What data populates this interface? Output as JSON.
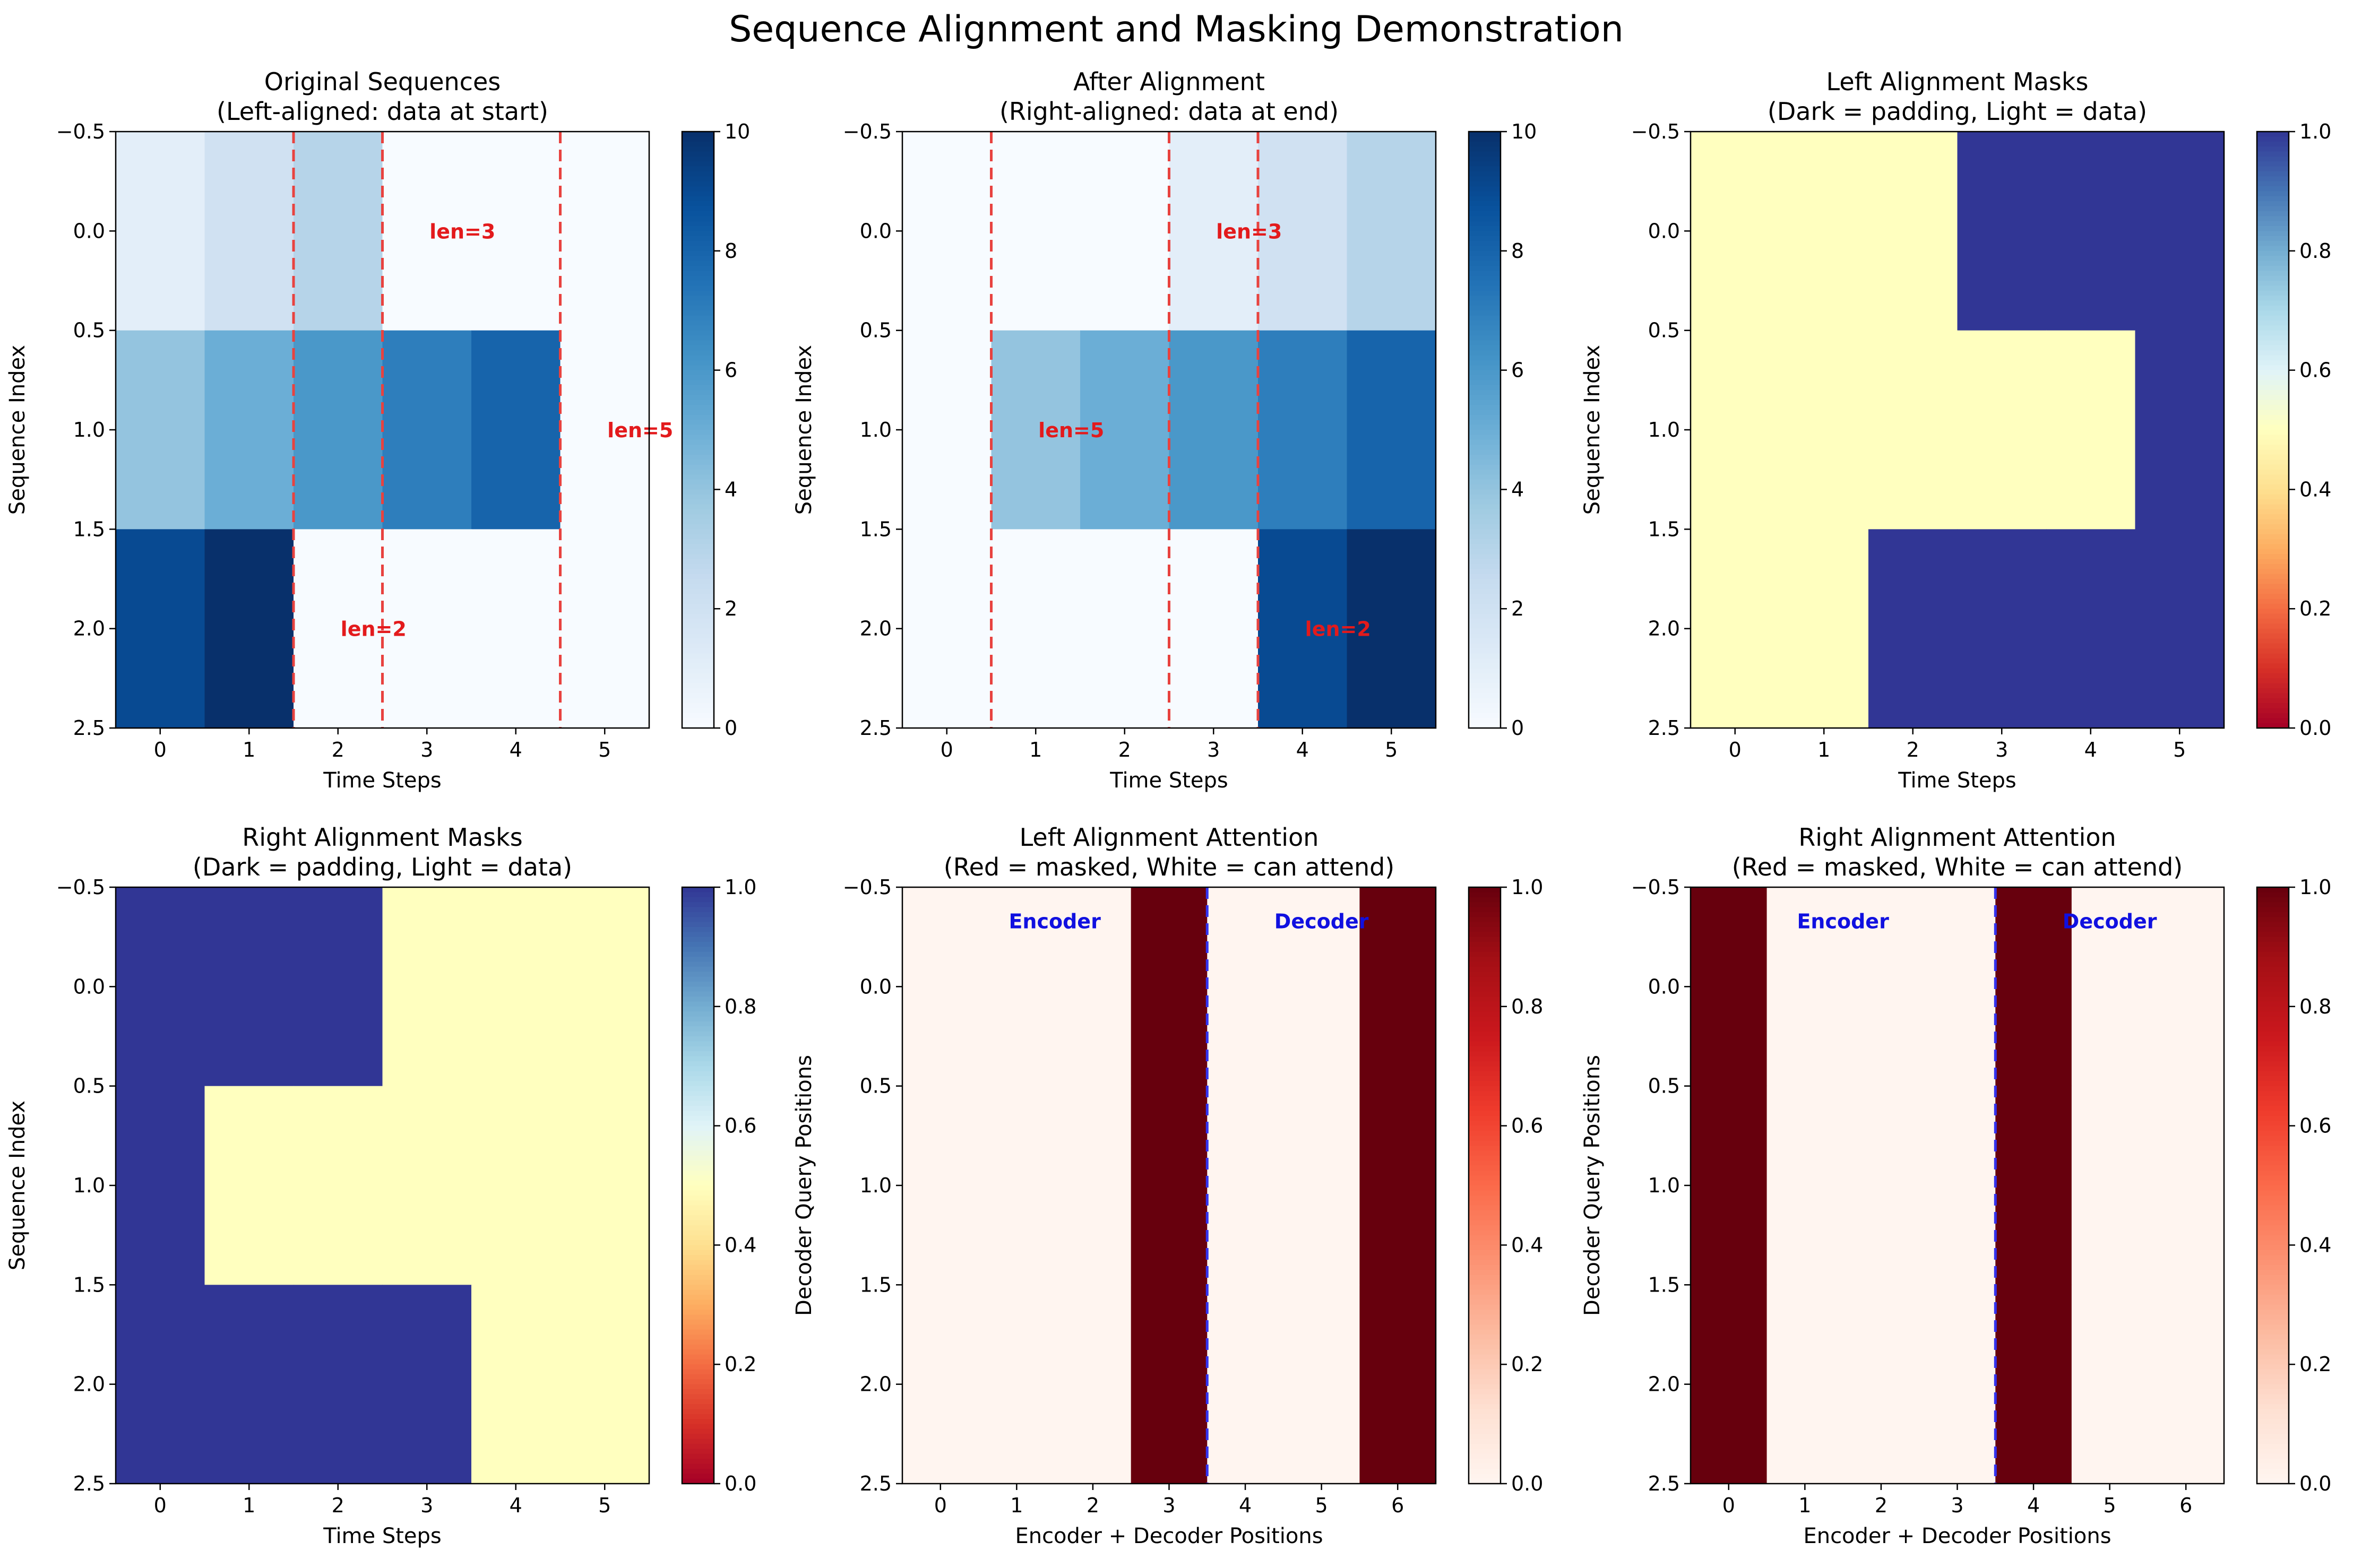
{
  "suptitle": "Sequence Alignment and Masking Demonstration",
  "chart_data": [
    {
      "type": "heatmap",
      "title": [
        "Original Sequences",
        "(Left-aligned: data at start)"
      ],
      "xlabel": "Time Steps",
      "ylabel": "Sequence Index",
      "colormap": "Blues",
      "vmin": 0,
      "vmax": 10,
      "colorbar_ticks": [
        0,
        2,
        4,
        6,
        8,
        10
      ],
      "colorbar_tick_labels": [
        "0",
        "2",
        "4",
        "6",
        "8",
        "10"
      ],
      "xticks": [
        0,
        1,
        2,
        3,
        4,
        5
      ],
      "x_tick_labels": [
        "0",
        "1",
        "2",
        "3",
        "4",
        "5"
      ],
      "yticks": [
        -0.5,
        0.0,
        0.5,
        1.0,
        1.5,
        2.0,
        2.5
      ],
      "y_tick_labels": [
        "−0.5",
        "0.0",
        "0.5",
        "1.0",
        "1.5",
        "2.0",
        "2.5"
      ],
      "matrix": [
        [
          1,
          2,
          3,
          0,
          0,
          0
        ],
        [
          4,
          5,
          6,
          7,
          8,
          0
        ],
        [
          9,
          10,
          0,
          0,
          0,
          0
        ]
      ],
      "vlines": [
        {
          "x": 2.5,
          "color": "#e8423f"
        },
        {
          "x": 4.5,
          "color": "#e8423f"
        },
        {
          "x": 1.5,
          "color": "#e8423f"
        }
      ],
      "annotations": [
        {
          "text": "len=3",
          "x": 3.4,
          "y": 0.0,
          "color": "#e31a1c"
        },
        {
          "text": "len=5",
          "x": 5.4,
          "y": 1.0,
          "color": "#e31a1c"
        },
        {
          "text": "len=2",
          "x": 2.4,
          "y": 2.0,
          "color": "#e31a1c"
        }
      ]
    },
    {
      "type": "heatmap",
      "title": [
        "After Alignment",
        "(Right-aligned: data at end)"
      ],
      "xlabel": "Time Steps",
      "ylabel": "Sequence Index",
      "colormap": "Blues",
      "vmin": 0,
      "vmax": 10,
      "colorbar_ticks": [
        0,
        2,
        4,
        6,
        8,
        10
      ],
      "colorbar_tick_labels": [
        "0",
        "2",
        "4",
        "6",
        "8",
        "10"
      ],
      "xticks": [
        0,
        1,
        2,
        3,
        4,
        5
      ],
      "x_tick_labels": [
        "0",
        "1",
        "2",
        "3",
        "4",
        "5"
      ],
      "yticks": [
        -0.5,
        0.0,
        0.5,
        1.0,
        1.5,
        2.0,
        2.5
      ],
      "y_tick_labels": [
        "−0.5",
        "0.0",
        "0.5",
        "1.0",
        "1.5",
        "2.0",
        "2.5"
      ],
      "matrix": [
        [
          0,
          0,
          0,
          1,
          2,
          3
        ],
        [
          0,
          4,
          5,
          6,
          7,
          8
        ],
        [
          0,
          0,
          0,
          0,
          9,
          10
        ]
      ],
      "vlines": [
        {
          "x": 2.5,
          "color": "#e8423f"
        },
        {
          "x": 0.5,
          "color": "#e8423f"
        },
        {
          "x": 3.5,
          "color": "#e8423f"
        }
      ],
      "annotations": [
        {
          "text": "len=3",
          "x": 3.4,
          "y": 0.0,
          "color": "#e31a1c"
        },
        {
          "text": "len=5",
          "x": 1.4,
          "y": 1.0,
          "color": "#e31a1c"
        },
        {
          "text": "len=2",
          "x": 4.4,
          "y": 2.0,
          "color": "#e31a1c"
        }
      ]
    },
    {
      "type": "heatmap",
      "title": [
        "Left Alignment Masks",
        "(Dark = padding, Light = data)"
      ],
      "xlabel": "Time Steps",
      "ylabel": "Sequence Index",
      "colormap": "RdYlBu",
      "vmin": 0,
      "vmax": 1,
      "colorbar_ticks": [
        0.0,
        0.2,
        0.4,
        0.6,
        0.8,
        1.0
      ],
      "colorbar_tick_labels": [
        "0.0",
        "0.2",
        "0.4",
        "0.6",
        "0.8",
        "1.0"
      ],
      "xticks": [
        0,
        1,
        2,
        3,
        4,
        5
      ],
      "x_tick_labels": [
        "0",
        "1",
        "2",
        "3",
        "4",
        "5"
      ],
      "yticks": [
        -0.5,
        0.0,
        0.5,
        1.0,
        1.5,
        2.0,
        2.5
      ],
      "y_tick_labels": [
        "−0.5",
        "0.0",
        "0.5",
        "1.0",
        "1.5",
        "2.0",
        "2.5"
      ],
      "matrix": [
        [
          0.5,
          0.5,
          0.5,
          1,
          1,
          1
        ],
        [
          0.5,
          0.5,
          0.5,
          0.5,
          0.5,
          1
        ],
        [
          0.5,
          0.5,
          1,
          1,
          1,
          1
        ]
      ],
      "vlines": [],
      "annotations": []
    },
    {
      "type": "heatmap",
      "title": [
        "Right Alignment Masks",
        "(Dark = padding, Light = data)"
      ],
      "xlabel": "Time Steps",
      "ylabel": "Sequence Index",
      "colormap": "RdYlBu",
      "vmin": 0,
      "vmax": 1,
      "colorbar_ticks": [
        0.0,
        0.2,
        0.4,
        0.6,
        0.8,
        1.0
      ],
      "colorbar_tick_labels": [
        "0.0",
        "0.2",
        "0.4",
        "0.6",
        "0.8",
        "1.0"
      ],
      "xticks": [
        0,
        1,
        2,
        3,
        4,
        5
      ],
      "x_tick_labels": [
        "0",
        "1",
        "2",
        "3",
        "4",
        "5"
      ],
      "yticks": [
        -0.5,
        0.0,
        0.5,
        1.0,
        1.5,
        2.0,
        2.5
      ],
      "y_tick_labels": [
        "−0.5",
        "0.0",
        "0.5",
        "1.0",
        "1.5",
        "2.0",
        "2.5"
      ],
      "matrix": [
        [
          1,
          1,
          1,
          0.5,
          0.5,
          0.5
        ],
        [
          1,
          0.5,
          0.5,
          0.5,
          0.5,
          0.5
        ],
        [
          1,
          1,
          1,
          1,
          0.5,
          0.5
        ]
      ],
      "vlines": [],
      "annotations": []
    },
    {
      "type": "heatmap",
      "title": [
        "Left Alignment Attention",
        "(Red = masked, White = can attend)"
      ],
      "xlabel": "Encoder + Decoder Positions",
      "ylabel": "Decoder Query Positions",
      "colormap": "Reds",
      "vmin": 0,
      "vmax": 1,
      "colorbar_ticks": [
        0.0,
        0.2,
        0.4,
        0.6,
        0.8,
        1.0
      ],
      "colorbar_tick_labels": [
        "0.0",
        "0.2",
        "0.4",
        "0.6",
        "0.8",
        "1.0"
      ],
      "xticks": [
        0,
        1,
        2,
        3,
        4,
        5,
        6
      ],
      "x_tick_labels": [
        "0",
        "1",
        "2",
        "3",
        "4",
        "5",
        "6"
      ],
      "yticks": [
        -0.5,
        0.0,
        0.5,
        1.0,
        1.5,
        2.0,
        2.5
      ],
      "y_tick_labels": [
        "−0.5",
        "0.0",
        "0.5",
        "1.0",
        "1.5",
        "2.0",
        "2.5"
      ],
      "matrix": [
        [
          0,
          0,
          0,
          1,
          0,
          0,
          1
        ],
        [
          0,
          0,
          0,
          1,
          0,
          0,
          1
        ],
        [
          0,
          0,
          0,
          1,
          0,
          0,
          1
        ]
      ],
      "vlines": [
        {
          "x": 3.5,
          "color": "#3333ee"
        }
      ],
      "annotations": [
        {
          "text": "Encoder",
          "x": 1.5,
          "y": -0.33,
          "color": "#1010e0"
        },
        {
          "text": "Decoder",
          "x": 5.0,
          "y": -0.33,
          "color": "#1010e0"
        }
      ]
    },
    {
      "type": "heatmap",
      "title": [
        "Right Alignment Attention",
        "(Red = masked, White = can attend)"
      ],
      "xlabel": "Encoder + Decoder Positions",
      "ylabel": "Decoder Query Positions",
      "colormap": "Reds",
      "vmin": 0,
      "vmax": 1,
      "colorbar_ticks": [
        0.0,
        0.2,
        0.4,
        0.6,
        0.8,
        1.0
      ],
      "colorbar_tick_labels": [
        "0.0",
        "0.2",
        "0.4",
        "0.6",
        "0.8",
        "1.0"
      ],
      "xticks": [
        0,
        1,
        2,
        3,
        4,
        5,
        6
      ],
      "x_tick_labels": [
        "0",
        "1",
        "2",
        "3",
        "4",
        "5",
        "6"
      ],
      "yticks": [
        -0.5,
        0.0,
        0.5,
        1.0,
        1.5,
        2.0,
        2.5
      ],
      "y_tick_labels": [
        "−0.5",
        "0.0",
        "0.5",
        "1.0",
        "1.5",
        "2.0",
        "2.5"
      ],
      "matrix": [
        [
          1,
          0,
          0,
          0,
          1,
          0,
          0
        ],
        [
          1,
          0,
          0,
          0,
          1,
          0,
          0
        ],
        [
          1,
          0,
          0,
          0,
          1,
          0,
          0
        ]
      ],
      "vlines": [
        {
          "x": 3.5,
          "color": "#3333ee"
        }
      ],
      "annotations": [
        {
          "text": "Encoder",
          "x": 1.5,
          "y": -0.33,
          "color": "#1010e0"
        },
        {
          "text": "Decoder",
          "x": 5.0,
          "y": -0.33,
          "color": "#1010e0"
        }
      ]
    }
  ]
}
